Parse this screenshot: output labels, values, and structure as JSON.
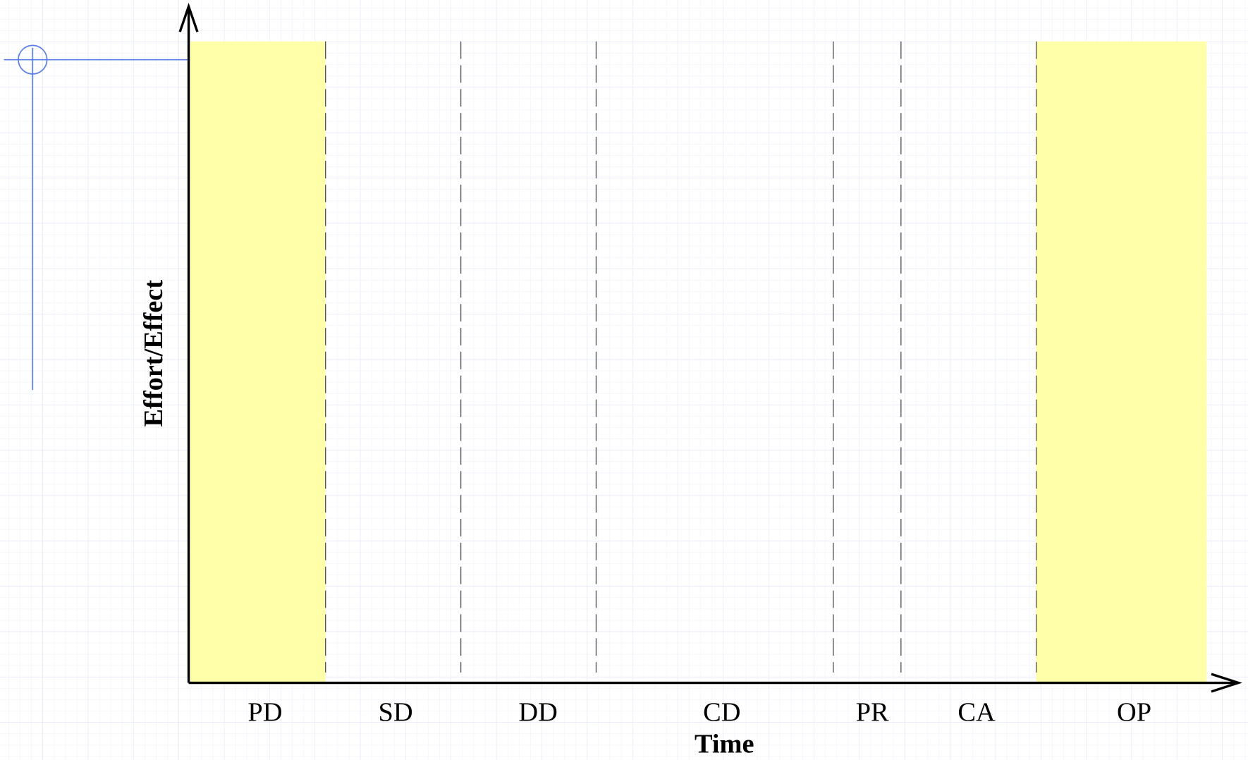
{
  "diagram": {
    "y_axis_label": "Effort/Effect",
    "x_axis_label": "Time",
    "phases": [
      "PD",
      "SD",
      "DD",
      "CD",
      "PR",
      "CA",
      "OP"
    ]
  }
}
